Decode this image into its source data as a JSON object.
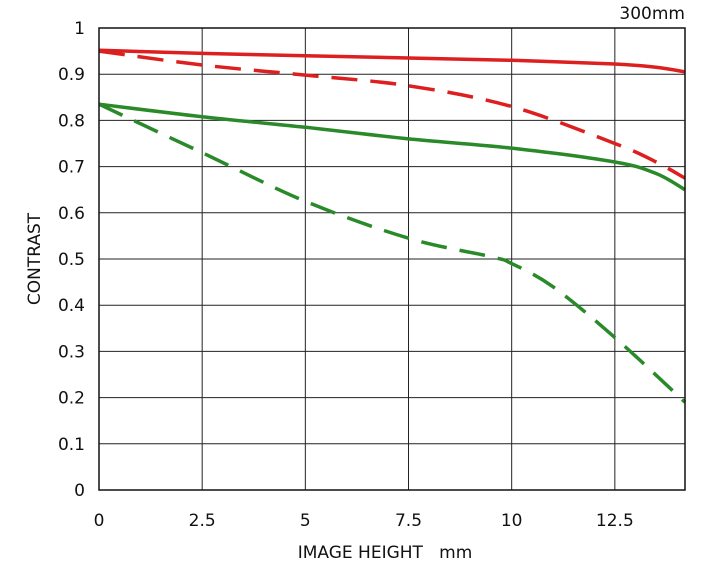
{
  "chart_data": {
    "type": "line",
    "title": "300mm",
    "xlabel": "IMAGE HEIGHT   mm",
    "ylabel": "CONTRAST",
    "xlim": [
      0,
      14.2
    ],
    "ylim": [
      0,
      1
    ],
    "x_ticks": [
      0,
      2.5,
      5,
      7.5,
      10,
      12.5
    ],
    "x_tick_labels": [
      "0",
      "2.5",
      "5",
      "7.5",
      "10",
      "12.5"
    ],
    "y_ticks": [
      0,
      0.1,
      0.2,
      0.3,
      0.4,
      0.5,
      0.6,
      0.7,
      0.8,
      0.9,
      1
    ],
    "y_tick_labels": [
      "0",
      "0.1",
      "0.2",
      "0.3",
      "0.4",
      "0.5",
      "0.6",
      "0.7",
      "0.8",
      "0.9",
      "1"
    ],
    "grid": true,
    "legend": "none",
    "series": [
      {
        "color": "#dd1f1f",
        "style": "solid",
        "points": [
          [
            0,
            0.952
          ],
          [
            2.5,
            0.945
          ],
          [
            5,
            0.94
          ],
          [
            7.5,
            0.935
          ],
          [
            10,
            0.93
          ],
          [
            12.5,
            0.922
          ],
          [
            13.5,
            0.915
          ],
          [
            14.2,
            0.905
          ]
        ]
      },
      {
        "color": "#dd1f1f",
        "style": "dashed",
        "points": [
          [
            0,
            0.95
          ],
          [
            2.5,
            0.92
          ],
          [
            5,
            0.898
          ],
          [
            7.5,
            0.875
          ],
          [
            10,
            0.83
          ],
          [
            12.5,
            0.75
          ],
          [
            13.5,
            0.71
          ],
          [
            14.2,
            0.675
          ]
        ]
      },
      {
        "color": "#2a8a2a",
        "style": "solid",
        "points": [
          [
            0,
            0.835
          ],
          [
            2.5,
            0.808
          ],
          [
            5,
            0.785
          ],
          [
            7.5,
            0.76
          ],
          [
            10,
            0.74
          ],
          [
            12.5,
            0.71
          ],
          [
            13.5,
            0.685
          ],
          [
            14.2,
            0.65
          ]
        ]
      },
      {
        "color": "#2a8a2a",
        "style": "dashed",
        "points": [
          [
            0,
            0.835
          ],
          [
            2.5,
            0.73
          ],
          [
            5,
            0.625
          ],
          [
            7.5,
            0.545
          ],
          [
            9.5,
            0.505
          ],
          [
            10,
            0.49
          ],
          [
            11,
            0.44
          ],
          [
            12.5,
            0.33
          ],
          [
            14.2,
            0.19
          ]
        ]
      }
    ]
  }
}
